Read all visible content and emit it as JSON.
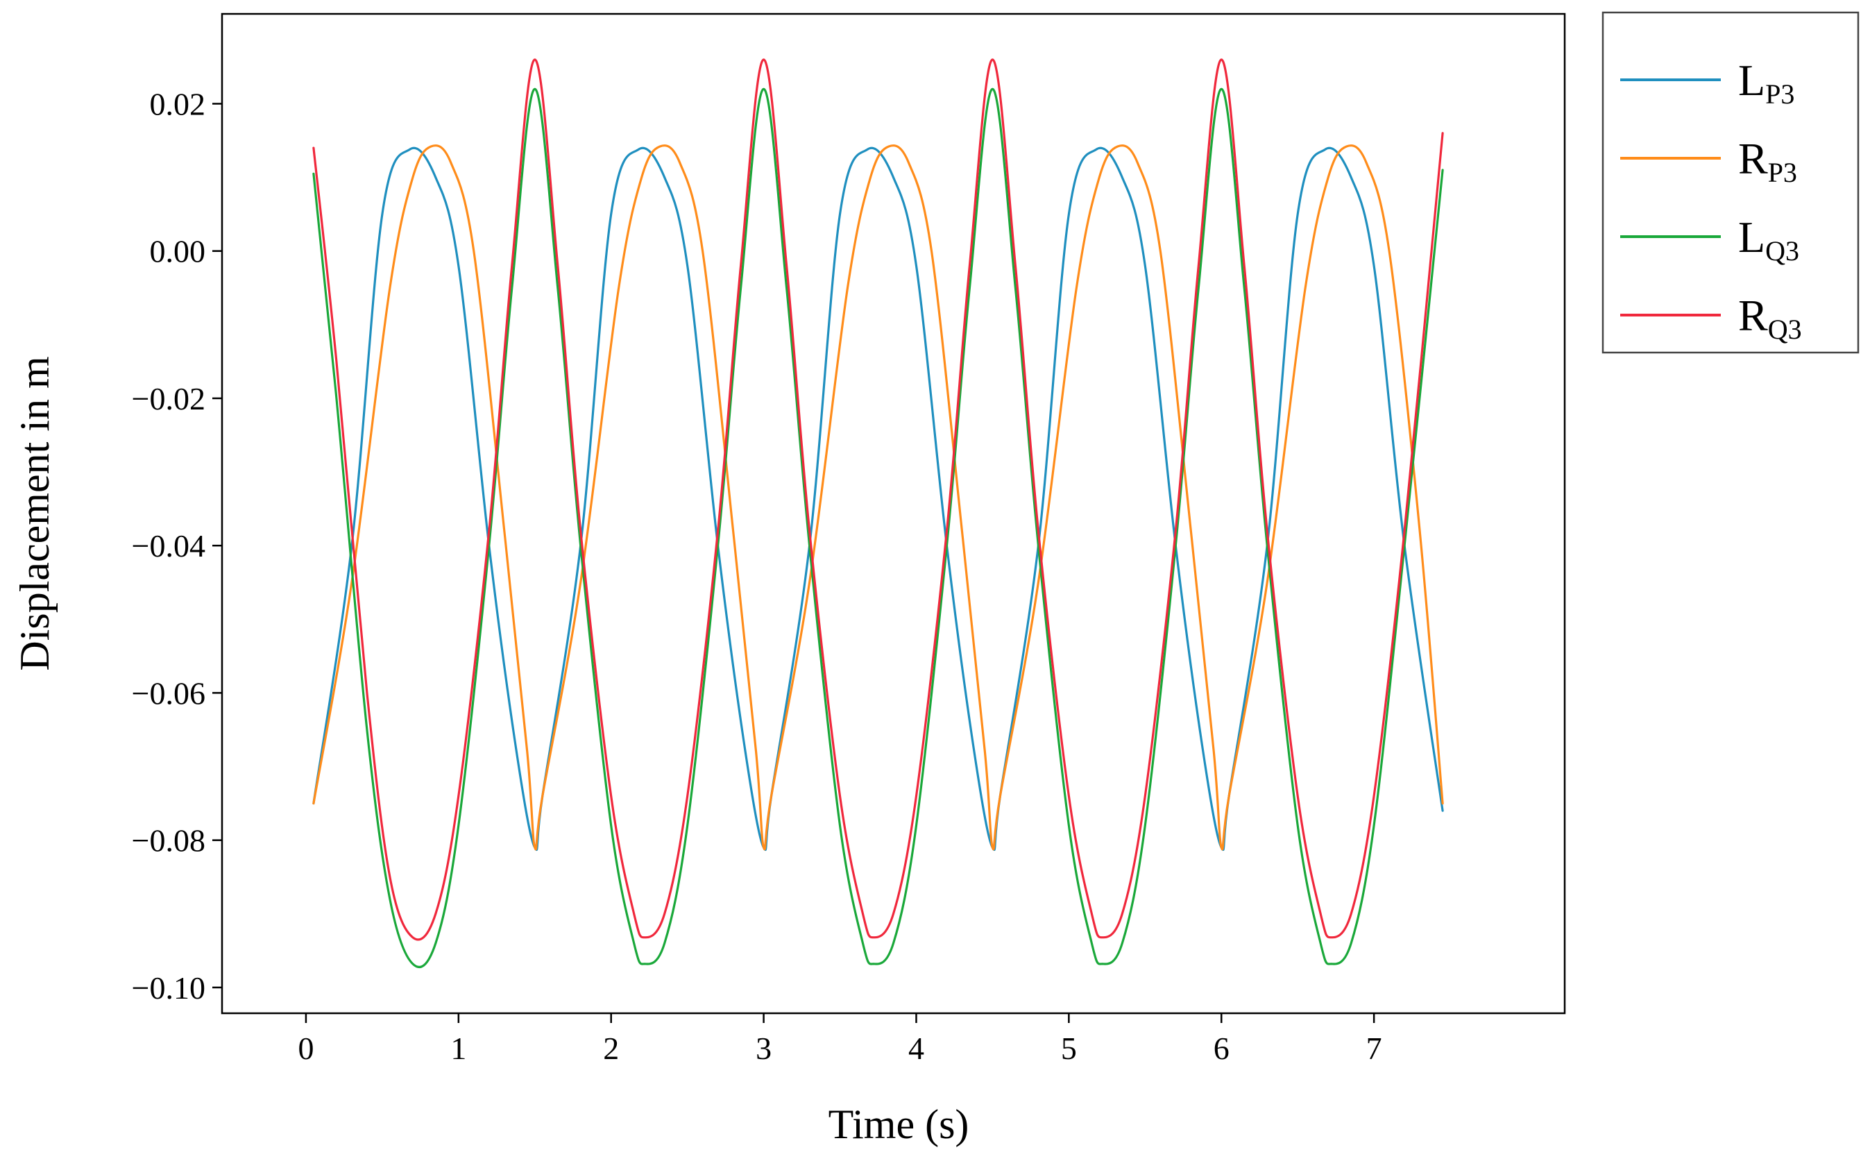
{
  "chart_data": {
    "type": "line",
    "title": "",
    "xlabel": "Time (s)",
    "ylabel": "Displacement in m",
    "xlim": [
      -0.55,
      8.25
    ],
    "ylim": [
      -0.1035,
      0.0322
    ],
    "xticks": [
      0,
      1,
      2,
      3,
      4,
      5,
      6,
      7
    ],
    "xtick_labels": [
      "0",
      "1",
      "2",
      "3",
      "4",
      "5",
      "6",
      "7"
    ],
    "yticks": [
      0.02,
      0.0,
      -0.02,
      -0.04,
      -0.06,
      -0.08,
      -0.1
    ],
    "ytick_labels": [
      "0.02",
      "0.00",
      "−0.02",
      "−0.04",
      "−0.06",
      "−0.08",
      "−0.10"
    ],
    "grid": false,
    "legend_position": "outside-top-right",
    "series": [
      {
        "name": "L",
        "sub": "P3",
        "color": "#1f8fbf",
        "points": [
          [
            0.05,
            -0.075
          ],
          [
            0.3,
            -0.04
          ],
          [
            0.5,
            0.005
          ],
          [
            0.68,
            0.0138
          ],
          [
            0.85,
            0.01
          ],
          [
            1.0,
            -0.002
          ],
          [
            1.2,
            -0.04
          ],
          [
            1.38,
            -0.068
          ],
          [
            1.5,
            -0.081
          ],
          [
            1.55,
            -0.074
          ],
          [
            1.8,
            -0.04
          ],
          [
            2.0,
            0.005
          ],
          [
            2.18,
            0.0138
          ],
          [
            2.35,
            0.01
          ],
          [
            2.5,
            -0.002
          ],
          [
            2.7,
            -0.04
          ],
          [
            2.88,
            -0.068
          ],
          [
            3.0,
            -0.081
          ],
          [
            3.05,
            -0.074
          ],
          [
            3.3,
            -0.04
          ],
          [
            3.5,
            0.005
          ],
          [
            3.68,
            0.0138
          ],
          [
            3.85,
            0.01
          ],
          [
            4.0,
            -0.002
          ],
          [
            4.2,
            -0.04
          ],
          [
            4.38,
            -0.068
          ],
          [
            4.5,
            -0.081
          ],
          [
            4.55,
            -0.074
          ],
          [
            4.8,
            -0.04
          ],
          [
            5.0,
            0.005
          ],
          [
            5.18,
            0.0138
          ],
          [
            5.35,
            0.01
          ],
          [
            5.5,
            -0.002
          ],
          [
            5.7,
            -0.04
          ],
          [
            5.88,
            -0.068
          ],
          [
            6.0,
            -0.081
          ],
          [
            6.05,
            -0.074
          ],
          [
            6.3,
            -0.04
          ],
          [
            6.5,
            0.005
          ],
          [
            6.68,
            0.0138
          ],
          [
            6.85,
            0.01
          ],
          [
            7.0,
            -0.002
          ],
          [
            7.2,
            -0.04
          ],
          [
            7.45,
            -0.076
          ]
        ]
      },
      {
        "name": "R",
        "sub": "P3",
        "color": "#ff8c1a",
        "points": [
          [
            0.05,
            -0.075
          ],
          [
            0.3,
            -0.045
          ],
          [
            0.55,
            -0.005
          ],
          [
            0.7,
            0.01
          ],
          [
            0.82,
            0.0142
          ],
          [
            0.95,
            0.012
          ],
          [
            1.1,
            0.0
          ],
          [
            1.3,
            -0.038
          ],
          [
            1.45,
            -0.068
          ],
          [
            1.5,
            -0.081
          ],
          [
            1.55,
            -0.074
          ],
          [
            1.8,
            -0.045
          ],
          [
            2.05,
            -0.005
          ],
          [
            2.2,
            0.01
          ],
          [
            2.32,
            0.0142
          ],
          [
            2.45,
            0.012
          ],
          [
            2.6,
            0.0
          ],
          [
            2.8,
            -0.038
          ],
          [
            2.95,
            -0.068
          ],
          [
            3.0,
            -0.081
          ],
          [
            3.05,
            -0.074
          ],
          [
            3.3,
            -0.045
          ],
          [
            3.55,
            -0.005
          ],
          [
            3.7,
            0.01
          ],
          [
            3.82,
            0.0142
          ],
          [
            3.95,
            0.012
          ],
          [
            4.1,
            0.0
          ],
          [
            4.3,
            -0.038
          ],
          [
            4.45,
            -0.068
          ],
          [
            4.5,
            -0.081
          ],
          [
            4.55,
            -0.074
          ],
          [
            4.8,
            -0.045
          ],
          [
            5.05,
            -0.005
          ],
          [
            5.2,
            0.01
          ],
          [
            5.32,
            0.0142
          ],
          [
            5.45,
            0.012
          ],
          [
            5.6,
            0.0
          ],
          [
            5.8,
            -0.038
          ],
          [
            5.95,
            -0.068
          ],
          [
            6.0,
            -0.081
          ],
          [
            6.05,
            -0.074
          ],
          [
            6.3,
            -0.045
          ],
          [
            6.55,
            -0.005
          ],
          [
            6.7,
            0.01
          ],
          [
            6.82,
            0.0142
          ],
          [
            6.95,
            0.012
          ],
          [
            7.1,
            0.0
          ],
          [
            7.3,
            -0.038
          ],
          [
            7.45,
            -0.075
          ]
        ]
      },
      {
        "name": "L",
        "sub": "Q3",
        "color": "#1aa83a",
        "points": [
          [
            0.05,
            0.0105
          ],
          [
            0.2,
            -0.02
          ],
          [
            0.4,
            -0.065
          ],
          [
            0.55,
            -0.088
          ],
          [
            0.7,
            -0.0968
          ],
          [
            0.85,
            -0.094
          ],
          [
            1.0,
            -0.078
          ],
          [
            1.2,
            -0.04
          ],
          [
            1.35,
            -0.005
          ],
          [
            1.5,
            0.022
          ],
          [
            1.65,
            -0.005
          ],
          [
            1.8,
            -0.04
          ],
          [
            2.0,
            -0.078
          ],
          [
            2.15,
            -0.094
          ],
          [
            2.22,
            -0.0968
          ],
          [
            2.35,
            -0.094
          ],
          [
            2.5,
            -0.078
          ],
          [
            2.7,
            -0.04
          ],
          [
            2.85,
            -0.005
          ],
          [
            3.0,
            0.022
          ],
          [
            3.15,
            -0.005
          ],
          [
            3.3,
            -0.04
          ],
          [
            3.5,
            -0.078
          ],
          [
            3.65,
            -0.094
          ],
          [
            3.72,
            -0.0968
          ],
          [
            3.85,
            -0.094
          ],
          [
            4.0,
            -0.078
          ],
          [
            4.2,
            -0.04
          ],
          [
            4.35,
            -0.005
          ],
          [
            4.5,
            0.022
          ],
          [
            4.65,
            -0.005
          ],
          [
            4.8,
            -0.04
          ],
          [
            5.0,
            -0.078
          ],
          [
            5.15,
            -0.094
          ],
          [
            5.22,
            -0.0968
          ],
          [
            5.35,
            -0.094
          ],
          [
            5.5,
            -0.078
          ],
          [
            5.7,
            -0.04
          ],
          [
            5.85,
            -0.005
          ],
          [
            6.0,
            0.022
          ],
          [
            6.15,
            -0.005
          ],
          [
            6.3,
            -0.04
          ],
          [
            6.5,
            -0.078
          ],
          [
            6.65,
            -0.094
          ],
          [
            6.72,
            -0.0968
          ],
          [
            6.85,
            -0.094
          ],
          [
            7.0,
            -0.078
          ],
          [
            7.2,
            -0.04
          ],
          [
            7.45,
            0.011
          ]
        ]
      },
      {
        "name": "R",
        "sub": "Q3",
        "color": "#f0283c",
        "points": [
          [
            0.05,
            0.014
          ],
          [
            0.2,
            -0.015
          ],
          [
            0.4,
            -0.06
          ],
          [
            0.55,
            -0.085
          ],
          [
            0.7,
            -0.0932
          ],
          [
            0.85,
            -0.09
          ],
          [
            1.0,
            -0.074
          ],
          [
            1.2,
            -0.038
          ],
          [
            1.35,
            -0.002
          ],
          [
            1.5,
            0.026
          ],
          [
            1.65,
            -0.002
          ],
          [
            1.8,
            -0.038
          ],
          [
            2.0,
            -0.074
          ],
          [
            2.15,
            -0.09
          ],
          [
            2.22,
            -0.0932
          ],
          [
            2.35,
            -0.09
          ],
          [
            2.5,
            -0.074
          ],
          [
            2.7,
            -0.038
          ],
          [
            2.85,
            -0.002
          ],
          [
            3.0,
            0.026
          ],
          [
            3.15,
            -0.002
          ],
          [
            3.3,
            -0.038
          ],
          [
            3.5,
            -0.074
          ],
          [
            3.65,
            -0.09
          ],
          [
            3.72,
            -0.0932
          ],
          [
            3.85,
            -0.09
          ],
          [
            4.0,
            -0.074
          ],
          [
            4.2,
            -0.038
          ],
          [
            4.35,
            -0.002
          ],
          [
            4.5,
            0.026
          ],
          [
            4.65,
            -0.002
          ],
          [
            4.8,
            -0.038
          ],
          [
            5.0,
            -0.074
          ],
          [
            5.15,
            -0.09
          ],
          [
            5.22,
            -0.0932
          ],
          [
            5.35,
            -0.09
          ],
          [
            5.5,
            -0.074
          ],
          [
            5.7,
            -0.038
          ],
          [
            5.85,
            -0.002
          ],
          [
            6.0,
            0.026
          ],
          [
            6.15,
            -0.002
          ],
          [
            6.3,
            -0.038
          ],
          [
            6.5,
            -0.074
          ],
          [
            6.65,
            -0.09
          ],
          [
            6.72,
            -0.0932
          ],
          [
            6.85,
            -0.09
          ],
          [
            7.0,
            -0.074
          ],
          [
            7.2,
            -0.038
          ],
          [
            7.45,
            0.016
          ]
        ]
      }
    ]
  }
}
